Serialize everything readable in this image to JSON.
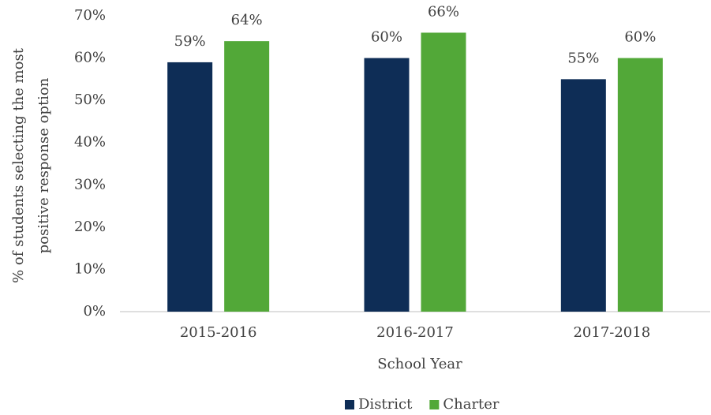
{
  "chart_data": {
    "type": "bar",
    "categories": [
      "2015-2016",
      "2016-2017",
      "2017-2018"
    ],
    "series": [
      {
        "name": "District",
        "color": "#0e2d56",
        "values": [
          59,
          60,
          55
        ],
        "value_labels": [
          "59%",
          "60%",
          "55%"
        ]
      },
      {
        "name": "Charter",
        "color": "#52a838",
        "values": [
          64,
          66,
          60
        ],
        "value_labels": [
          "64%",
          "66%",
          "60%"
        ]
      }
    ],
    "xlabel": "School Year",
    "ylabel": [
      "% of students selecting the most",
      "positive response option"
    ],
    "ylim": [
      0,
      70
    ],
    "yticks": [
      {
        "value": 0,
        "label": "0%"
      },
      {
        "value": 10,
        "label": "10%"
      },
      {
        "value": 20,
        "label": "20%"
      },
      {
        "value": 30,
        "label": "30%"
      },
      {
        "value": 40,
        "label": "40%"
      },
      {
        "value": 50,
        "label": "50%"
      },
      {
        "value": 60,
        "label": "60%"
      },
      {
        "value": 70,
        "label": "70%"
      }
    ],
    "grid": false,
    "legend": "bottom"
  }
}
